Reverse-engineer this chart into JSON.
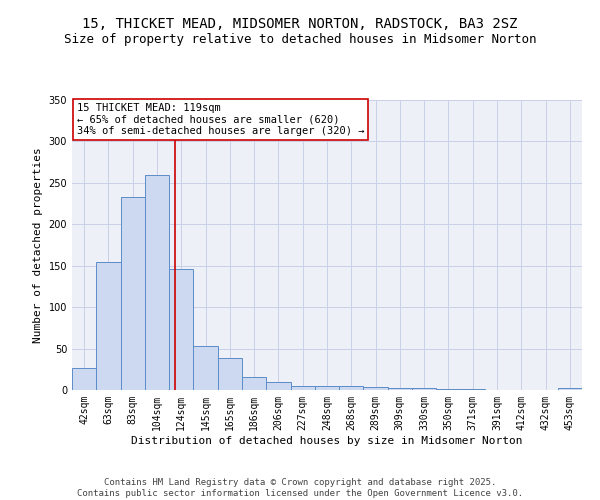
{
  "title1": "15, THICKET MEAD, MIDSOMER NORTON, RADSTOCK, BA3 2SZ",
  "title2": "Size of property relative to detached houses in Midsomer Norton",
  "xlabel": "Distribution of detached houses by size in Midsomer Norton",
  "ylabel": "Number of detached properties",
  "categories": [
    "42sqm",
    "63sqm",
    "83sqm",
    "104sqm",
    "124sqm",
    "145sqm",
    "165sqm",
    "186sqm",
    "206sqm",
    "227sqm",
    "248sqm",
    "268sqm",
    "289sqm",
    "309sqm",
    "330sqm",
    "350sqm",
    "371sqm",
    "391sqm",
    "412sqm",
    "432sqm",
    "453sqm"
  ],
  "values": [
    27,
    155,
    233,
    260,
    146,
    53,
    39,
    16,
    10,
    5,
    5,
    5,
    4,
    2,
    2,
    1,
    1,
    0,
    0,
    0,
    3
  ],
  "bar_color": "#ccd9f0",
  "bar_edge_color": "#5b8cc8",
  "subject_line_color": "#cc0000",
  "annotation_text": "15 THICKET MEAD: 119sqm\n← 65% of detached houses are smaller (620)\n34% of semi-detached houses are larger (320) →",
  "annotation_box_color": "#ffffff",
  "annotation_box_edge_color": "#cc0000",
  "ylim": [
    0,
    350
  ],
  "yticks": [
    0,
    50,
    100,
    150,
    200,
    250,
    300,
    350
  ],
  "grid_color": "#c8cfe8",
  "bg_color": "#eef0f8",
  "footer_text": "Contains HM Land Registry data © Crown copyright and database right 2025.\nContains public sector information licensed under the Open Government Licence v3.0.",
  "title1_fontsize": 10,
  "title2_fontsize": 9,
  "xlabel_fontsize": 8,
  "ylabel_fontsize": 8,
  "tick_fontsize": 7,
  "annotation_fontsize": 7.5,
  "footer_fontsize": 6.5,
  "red_line_x": 3.76
}
